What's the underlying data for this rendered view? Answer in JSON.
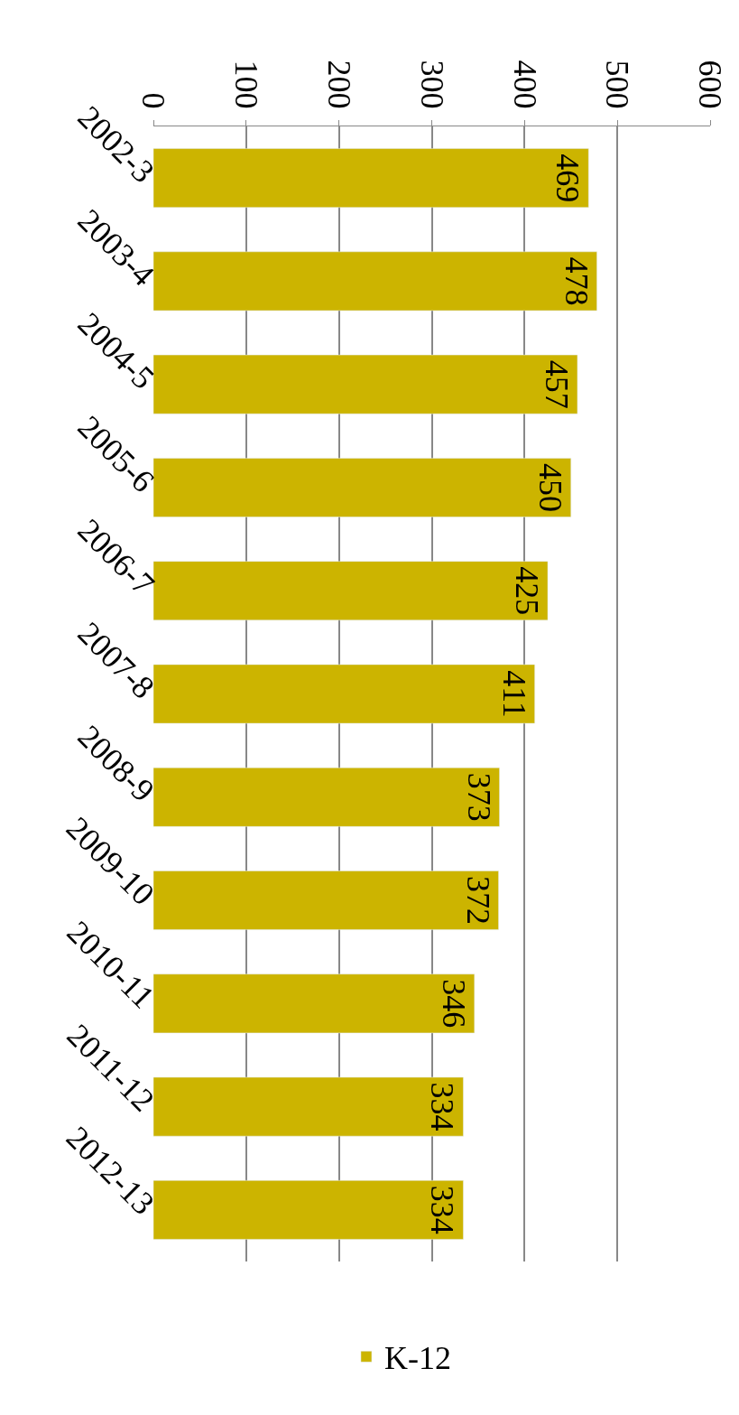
{
  "chart_data": {
    "type": "bar",
    "orientation": "horizontal",
    "categories": [
      "2002-3",
      "2003-4",
      "2004-5",
      "2005-6",
      "2006-7",
      "2007-8",
      "2008-9",
      "2009-10",
      "2010-11",
      "2011-12",
      "2012-13"
    ],
    "series": [
      {
        "name": "K-12",
        "color": "#ccb400",
        "values": [
          469,
          478,
          457,
          450,
          425,
          411,
          373,
          372,
          346,
          334,
          334
        ]
      }
    ],
    "xlim": [
      0,
      600
    ],
    "xticks": [
      0,
      100,
      200,
      300,
      400,
      500,
      600
    ],
    "data_labels": true,
    "grid": "x",
    "legend": "bottom"
  }
}
